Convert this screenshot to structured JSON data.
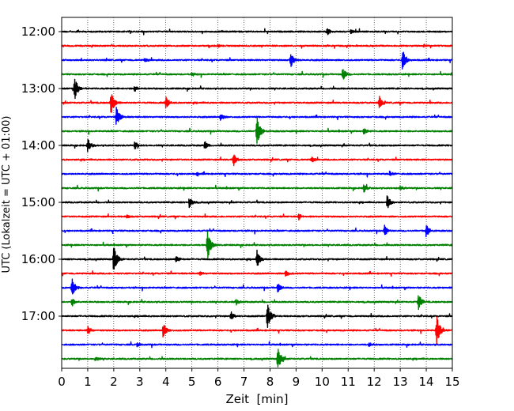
{
  "chart_data": {
    "type": "line",
    "title": "",
    "xlabel": "Zeit  [min]",
    "ylabel": "UTC (Lokalzeit = UTC + 01:00)",
    "xlim": [
      0,
      15
    ],
    "x_ticks": [
      0,
      1,
      2,
      3,
      4,
      5,
      6,
      7,
      8,
      9,
      10,
      11,
      12,
      13,
      14,
      15
    ],
    "x_tick_labels": [
      "0",
      "1",
      "2",
      "3",
      "4",
      "5",
      "6",
      "7",
      "8",
      "9",
      "10",
      "11",
      "12",
      "13",
      "14",
      "15"
    ],
    "y_tick_labels": [
      "12:00",
      "13:00",
      "14:00",
      "15:00",
      "16:00",
      "17:00"
    ],
    "trace_interval_min": 15,
    "grid": "vertical dotted",
    "colors": [
      "#000000",
      "#ff0000",
      "#0000ff",
      "#008000"
    ],
    "series": [
      {
        "start": "12:00",
        "color": "#000000",
        "events": [
          {
            "t": 10.2,
            "amp": 0.3
          },
          {
            "t": 11.1,
            "amp": 0.2
          }
        ]
      },
      {
        "start": "12:15",
        "color": "#ff0000",
        "events": [
          {
            "t": 6.0,
            "amp": 0.15
          },
          {
            "t": 13.9,
            "amp": 0.15
          }
        ]
      },
      {
        "start": "12:30",
        "color": "#0000ff",
        "events": [
          {
            "t": 8.8,
            "amp": 0.7
          },
          {
            "t": 13.1,
            "amp": 1.0
          },
          {
            "t": 3.2,
            "amp": 0.2
          }
        ]
      },
      {
        "start": "12:45",
        "color": "#008000",
        "events": [
          {
            "t": 10.8,
            "amp": 0.6
          },
          {
            "t": 5.0,
            "amp": 0.2
          }
        ]
      },
      {
        "start": "13:00",
        "color": "#000000",
        "events": [
          {
            "t": 0.5,
            "amp": 1.1
          },
          {
            "t": 2.8,
            "amp": 0.3
          }
        ]
      },
      {
        "start": "13:15",
        "color": "#ff0000",
        "events": [
          {
            "t": 1.9,
            "amp": 1.2
          },
          {
            "t": 4.0,
            "amp": 0.6
          },
          {
            "t": 12.2,
            "amp": 0.6
          }
        ]
      },
      {
        "start": "13:30",
        "color": "#0000ff",
        "events": [
          {
            "t": 2.1,
            "amp": 1.0
          },
          {
            "t": 6.1,
            "amp": 0.3
          }
        ]
      },
      {
        "start": "13:45",
        "color": "#008000",
        "events": [
          {
            "t": 7.5,
            "amp": 1.5
          },
          {
            "t": 11.6,
            "amp": 0.3
          }
        ]
      },
      {
        "start": "14:00",
        "color": "#000000",
        "events": [
          {
            "t": 1.0,
            "amp": 0.7
          },
          {
            "t": 2.8,
            "amp": 0.4
          },
          {
            "t": 5.5,
            "amp": 0.4
          }
        ]
      },
      {
        "start": "14:15",
        "color": "#ff0000",
        "events": [
          {
            "t": 6.6,
            "amp": 0.6
          },
          {
            "t": 9.6,
            "amp": 0.3
          }
        ]
      },
      {
        "start": "14:30",
        "color": "#0000ff",
        "events": [
          {
            "t": 5.2,
            "amp": 0.2
          },
          {
            "t": 12.6,
            "amp": 0.2
          }
        ]
      },
      {
        "start": "14:45",
        "color": "#008000",
        "events": [
          {
            "t": 11.6,
            "amp": 0.4
          },
          {
            "t": 13.0,
            "amp": 0.2
          }
        ]
      },
      {
        "start": "15:00",
        "color": "#000000",
        "events": [
          {
            "t": 4.9,
            "amp": 0.5
          },
          {
            "t": 12.5,
            "amp": 0.7
          }
        ]
      },
      {
        "start": "15:15",
        "color": "#ff0000",
        "events": [
          {
            "t": 9.1,
            "amp": 0.3
          },
          {
            "t": 2.5,
            "amp": 0.2
          }
        ]
      },
      {
        "start": "15:30",
        "color": "#0000ff",
        "events": [
          {
            "t": 12.4,
            "amp": 0.5
          },
          {
            "t": 14.0,
            "amp": 0.6
          }
        ]
      },
      {
        "start": "15:45",
        "color": "#008000",
        "events": [
          {
            "t": 5.6,
            "amp": 1.5
          }
        ]
      },
      {
        "start": "16:00",
        "color": "#000000",
        "events": [
          {
            "t": 2.0,
            "amp": 1.4
          },
          {
            "t": 7.5,
            "amp": 0.9
          },
          {
            "t": 4.4,
            "amp": 0.3
          }
        ]
      },
      {
        "start": "16:15",
        "color": "#ff0000",
        "events": [
          {
            "t": 8.6,
            "amp": 0.3
          },
          {
            "t": 5.3,
            "amp": 0.2
          }
        ]
      },
      {
        "start": "16:30",
        "color": "#0000ff",
        "events": [
          {
            "t": 0.4,
            "amp": 0.9
          },
          {
            "t": 8.3,
            "amp": 0.5
          }
        ]
      },
      {
        "start": "16:45",
        "color": "#008000",
        "events": [
          {
            "t": 13.7,
            "amp": 0.8
          },
          {
            "t": 0.4,
            "amp": 0.4
          },
          {
            "t": 6.7,
            "amp": 0.3
          }
        ]
      },
      {
        "start": "17:00",
        "color": "#000000",
        "events": [
          {
            "t": 7.9,
            "amp": 1.3
          },
          {
            "t": 6.5,
            "amp": 0.4
          }
        ]
      },
      {
        "start": "17:15",
        "color": "#ff0000",
        "events": [
          {
            "t": 3.9,
            "amp": 0.7
          },
          {
            "t": 14.4,
            "amp": 1.5
          },
          {
            "t": 1.0,
            "amp": 0.4
          }
        ]
      },
      {
        "start": "17:30",
        "color": "#0000ff",
        "events": [
          {
            "t": 11.8,
            "amp": 0.2
          },
          {
            "t": 2.9,
            "amp": 0.2
          }
        ]
      },
      {
        "start": "17:45",
        "color": "#008000",
        "events": [
          {
            "t": 8.3,
            "amp": 1.1
          },
          {
            "t": 1.3,
            "amp": 0.2
          }
        ]
      }
    ]
  }
}
